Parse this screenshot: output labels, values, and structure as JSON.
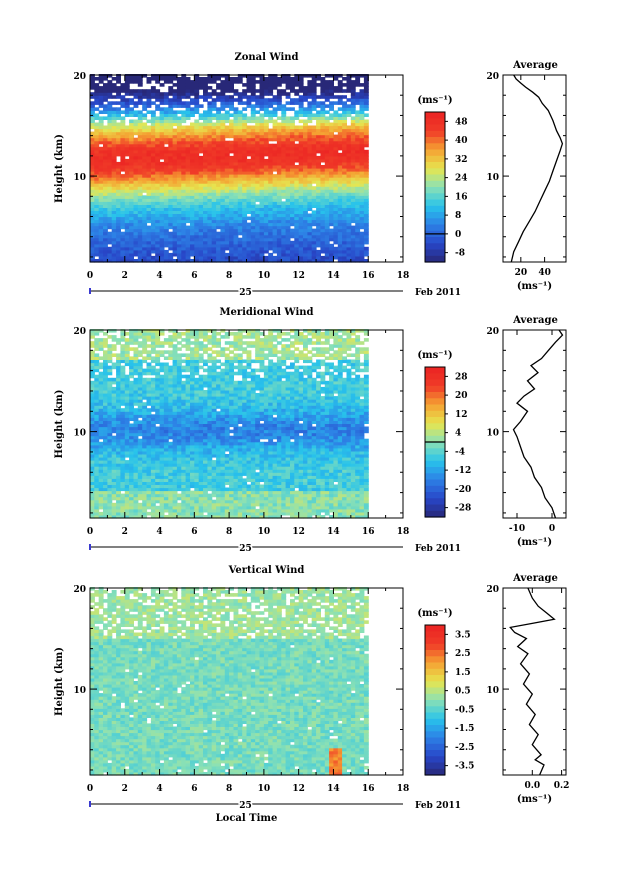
{
  "chart_data": [
    {
      "type": "heatmap",
      "title": "Zonal Wind",
      "ylabel": "Height (km)",
      "xlabel": "",
      "x_ticks": [
        0,
        2,
        4,
        6,
        8,
        10,
        12,
        14,
        16,
        18
      ],
      "x_range": [
        0,
        18
      ],
      "data_x_range": [
        0,
        16
      ],
      "y_ticks": [
        10,
        20
      ],
      "y_range": [
        1.5,
        20
      ],
      "date_label": "25",
      "month_label": "Feb 2011",
      "colorbar": {
        "unit": "(ms⁻¹)",
        "ticks": [
          "48",
          "40",
          "32",
          "24",
          "16",
          "8",
          "0",
          "-8"
        ],
        "range": [
          -12,
          52
        ],
        "zero_line": 0
      },
      "profile": {
        "title": "Average",
        "xlabel": "(ms⁻¹)",
        "x_ticks": [
          "20",
          "40"
        ],
        "x_tick_values": [
          20,
          40
        ],
        "x_range": [
          5,
          58
        ],
        "y_range": [
          1.5,
          20
        ],
        "y_ticks": [
          10,
          20
        ],
        "points": [
          [
            12,
            1.5
          ],
          [
            14,
            2.5
          ],
          [
            18,
            3.5
          ],
          [
            22,
            4.5
          ],
          [
            27,
            5.5
          ],
          [
            32,
            6.5
          ],
          [
            36,
            7.5
          ],
          [
            40,
            8.5
          ],
          [
            44,
            9.5
          ],
          [
            47,
            10.5
          ],
          [
            50,
            11.5
          ],
          [
            53,
            12.5
          ],
          [
            55,
            13.2
          ],
          [
            53,
            13.8
          ],
          [
            50,
            14.5
          ],
          [
            47,
            15.5
          ],
          [
            43,
            16.5
          ],
          [
            38,
            17.2
          ],
          [
            35,
            17.8
          ],
          [
            30,
            18.3
          ],
          [
            24,
            18.8
          ],
          [
            20,
            19.2
          ],
          [
            16,
            19.6
          ],
          [
            14,
            20
          ]
        ]
      }
    },
    {
      "type": "heatmap",
      "title": "Meridional Wind",
      "ylabel": "Height (km)",
      "xlabel": "",
      "x_ticks": [
        0,
        2,
        4,
        6,
        8,
        10,
        12,
        14,
        16,
        18
      ],
      "x_range": [
        0,
        18
      ],
      "data_x_range": [
        0,
        16
      ],
      "y_ticks": [
        10,
        20
      ],
      "y_range": [
        1.5,
        20
      ],
      "date_label": "25",
      "month_label": "Feb 2011",
      "colorbar": {
        "unit": "(ms⁻¹)",
        "ticks": [
          "28",
          "20",
          "12",
          "4",
          "-4",
          "-12",
          "-20",
          "-28"
        ],
        "range": [
          -32,
          32
        ],
        "zero_line": 0
      },
      "profile": {
        "title": "Average",
        "xlabel": "(ms⁻¹)",
        "x_ticks": [
          "-10",
          "0"
        ],
        "x_tick_values": [
          -10,
          0
        ],
        "x_range": [
          -14,
          4
        ],
        "y_range": [
          1.5,
          20
        ],
        "y_ticks": [
          10,
          20
        ],
        "points": [
          [
            1,
            1.5
          ],
          [
            0,
            2.5
          ],
          [
            -2,
            3.5
          ],
          [
            -3,
            4.5
          ],
          [
            -5,
            5.5
          ],
          [
            -6,
            6.5
          ],
          [
            -8,
            7.5
          ],
          [
            -9,
            8.5
          ],
          [
            -10,
            9.5
          ],
          [
            -11,
            10.2
          ],
          [
            -9,
            11
          ],
          [
            -7,
            12
          ],
          [
            -10,
            12.8
          ],
          [
            -8,
            13.5
          ],
          [
            -5,
            14.2
          ],
          [
            -7,
            15
          ],
          [
            -4,
            15.8
          ],
          [
            -6,
            16.5
          ],
          [
            -3,
            17.2
          ],
          [
            -1,
            18
          ],
          [
            1,
            18.8
          ],
          [
            3,
            19.5
          ],
          [
            2,
            20
          ]
        ]
      }
    },
    {
      "type": "heatmap",
      "title": "Vertical Wind",
      "ylabel": "Height (km)",
      "xlabel": "Local Time",
      "x_ticks": [
        0,
        2,
        4,
        6,
        8,
        10,
        12,
        14,
        16,
        18
      ],
      "x_range": [
        0,
        18
      ],
      "data_x_range": [
        0,
        16
      ],
      "y_ticks": [
        10,
        20
      ],
      "y_range": [
        1.5,
        20
      ],
      "date_label": "25",
      "month_label": "Feb 2011",
      "colorbar": {
        "unit": "(ms⁻¹)",
        "ticks": [
          "3.5",
          "2.5",
          "1.5",
          "0.5",
          "-0.5",
          "-1.5",
          "-2.5",
          "-3.5"
        ],
        "range": [
          -4,
          4
        ]
      },
      "profile": {
        "title": "Average",
        "xlabel": "(ms⁻¹)",
        "x_ticks": [
          "0.0",
          "0.2"
        ],
        "x_tick_values": [
          0.0,
          0.2
        ],
        "x_range": [
          -0.2,
          0.23
        ],
        "y_range": [
          1.5,
          20
        ],
        "y_ticks": [
          10,
          20
        ],
        "points": [
          [
            0.05,
            1.5
          ],
          [
            0.08,
            2.5
          ],
          [
            0.02,
            3
          ],
          [
            0.06,
            3.5
          ],
          [
            0.0,
            4.5
          ],
          [
            0.04,
            5.5
          ],
          [
            -0.02,
            6.5
          ],
          [
            0.02,
            7.5
          ],
          [
            -0.04,
            8.5
          ],
          [
            0.0,
            9.5
          ],
          [
            -0.06,
            10.5
          ],
          [
            -0.02,
            11.5
          ],
          [
            -0.08,
            12.5
          ],
          [
            -0.03,
            13.5
          ],
          [
            -0.1,
            14.2
          ],
          [
            -0.04,
            15
          ],
          [
            -0.12,
            15.6
          ],
          [
            -0.15,
            16.1
          ],
          [
            0.0,
            16.5
          ],
          [
            0.15,
            16.9
          ],
          [
            0.1,
            17.5
          ],
          [
            0.04,
            18.2
          ],
          [
            0.0,
            19
          ],
          [
            -0.03,
            20
          ]
        ]
      }
    }
  ]
}
